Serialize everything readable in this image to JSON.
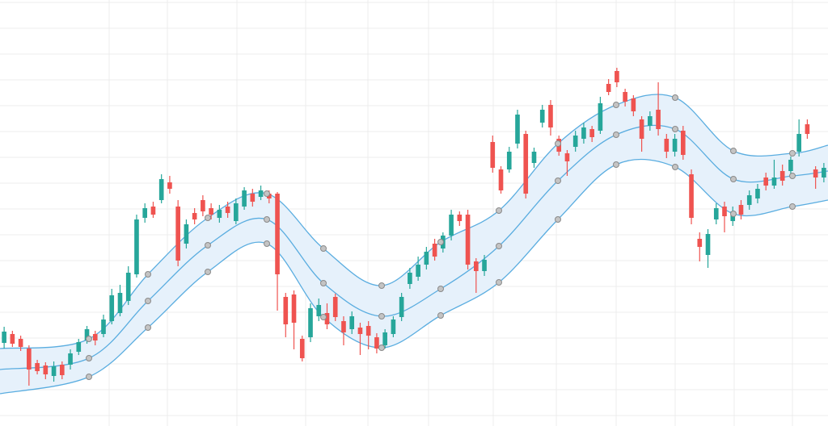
{
  "chart_data": {
    "type": "candlestick",
    "xlim": [
      0,
      1024
    ],
    "ylim": [
      0,
      528
    ],
    "xticks": [
      135,
      207,
      293,
      378,
      455,
      530,
      610,
      688,
      762,
      835,
      908,
      980
    ],
    "yticks": [
      13,
      45,
      77,
      109,
      141,
      173,
      205,
      237,
      269,
      301,
      333,
      365,
      397,
      429,
      461,
      493,
      525
    ],
    "grid": true,
    "up_color": "#26a69a",
    "down_color": "#ef5350",
    "open": [
      103,
      114,
      108,
      96,
      78,
      75,
      62,
      76,
      76,
      92,
      106,
      114,
      114,
      130,
      140,
      155,
      188,
      258,
      272,
      280,
      302,
      272,
      226,
      264,
      280,
      270,
      258,
      272,
      254,
      272,
      288,
      284,
      288,
      288,
      160,
      163,
      108,
      110,
      136,
      140,
      160,
      130,
      120,
      122,
      124,
      110,
      100,
      114,
      135,
      176,
      185,
      200,
      226,
      220,
      236,
      262,
      262,
      204,
      192,
      352,
      318,
      318,
      350,
      362,
      326,
      376,
      398,
      356,
      338,
      346,
      356,
      368,
      366,
      424,
      440,
      414,
      406,
      380,
      372,
      392,
      356,
      340,
      366,
      312,
      232,
      212,
      256,
      272,
      254,
      274,
      274,
      282,
      308,
      298,
      316,
      316,
      340,
      374,
      318,
      308
    ],
    "high": [
      123,
      118,
      112,
      100,
      82,
      79,
      80,
      80,
      95,
      108,
      124,
      118,
      138,
      170,
      175,
      198,
      262,
      276,
      278,
      312,
      310,
      280,
      256,
      270,
      286,
      276,
      274,
      278,
      282,
      296,
      294,
      298,
      292,
      290,
      165,
      168,
      112,
      152,
      158,
      152,
      164,
      136,
      142,
      128,
      130,
      115,
      120,
      136,
      165,
      196,
      210,
      222,
      232,
      240,
      268,
      266,
      268,
      208,
      212,
      360,
      322,
      346,
      392,
      366,
      345,
      398,
      404,
      360,
      342,
      366,
      376,
      372,
      408,
      430,
      444,
      418,
      410,
      384,
      390,
      426,
      362,
      362,
      372,
      318,
      240,
      244,
      276,
      278,
      272,
      280,
      292,
      300,
      314,
      330,
      324,
      334,
      380,
      380,
      322,
      326
    ],
    "low": [
      96,
      98,
      93,
      50,
      64,
      58,
      55,
      58,
      70,
      88,
      102,
      100,
      110,
      126,
      136,
      150,
      184,
      252,
      258,
      276,
      288,
      198,
      220,
      250,
      260,
      256,
      252,
      258,
      250,
      268,
      272,
      280,
      276,
      143,
      110,
      95,
      80,
      104,
      130,
      120,
      130,
      100,
      114,
      88,
      95,
      90,
      96,
      110,
      130,
      170,
      180,
      194,
      205,
      215,
      230,
      248,
      194,
      165,
      186,
      314,
      288,
      314,
      344,
      282,
      320,
      370,
      360,
      335,
      310,
      340,
      350,
      352,
      362,
      410,
      420,
      396,
      384,
      340,
      366,
      360,
      332,
      334,
      330,
      250,
      204,
      196,
      250,
      240,
      248,
      256,
      268,
      276,
      292,
      294,
      298,
      310,
      334,
      356,
      294,
      302
    ],
    "close": [
      117,
      102,
      98,
      70,
      68,
      64,
      74,
      63,
      90,
      104,
      120,
      106,
      132,
      162,
      165,
      190,
      256,
      270,
      262,
      306,
      294,
      205,
      250,
      256,
      266,
      262,
      268,
      264,
      276,
      292,
      278,
      292,
      282,
      188,
      126,
      128,
      84,
      146,
      150,
      126,
      135,
      116,
      136,
      114,
      112,
      96,
      116,
      132,
      160,
      190,
      200,
      216,
      210,
      236,
      262,
      254,
      200,
      192,
      206,
      320,
      292,
      340,
      386,
      288,
      340,
      392,
      370,
      340,
      328,
      360,
      370,
      358,
      400,
      414,
      426,
      402,
      390,
      356,
      384,
      368,
      340,
      356,
      336,
      258,
      222,
      238,
      270,
      260,
      266,
      262,
      286,
      294,
      298,
      308,
      304,
      330,
      362,
      362,
      308,
      320
    ],
    "bands": {
      "x": [
        0,
        110,
        183,
        257,
        330,
        400,
        472,
        545,
        617,
        690,
        762,
        835,
        907,
        980,
        1024
      ],
      "upper": [
        96,
        108,
        188,
        258,
        288,
        220,
        174,
        228,
        267,
        350,
        398,
        407,
        341,
        338,
        348
      ],
      "middle": [
        70,
        84,
        155,
        224,
        256,
        177,
        136,
        170,
        223,
        304,
        361,
        368,
        306,
        310,
        316
      ],
      "lower": [
        40,
        61,
        122,
        191,
        226,
        135,
        97,
        137,
        178,
        256,
        324,
        321,
        263,
        272,
        280
      ],
      "color": "#5aade0",
      "fill": "#e6f1fb",
      "marker_color": "#c4c4c4"
    }
  }
}
